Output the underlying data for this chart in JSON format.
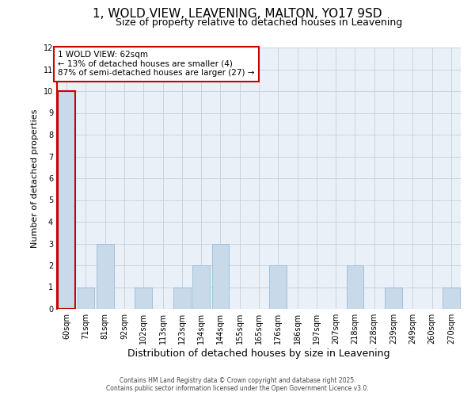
{
  "title": "1, WOLD VIEW, LEAVENING, MALTON, YO17 9SD",
  "subtitle": "Size of property relative to detached houses in Leavening",
  "xlabel": "Distribution of detached houses by size in Leavening",
  "ylabel": "Number of detached properties",
  "categories": [
    "60sqm",
    "71sqm",
    "81sqm",
    "92sqm",
    "102sqm",
    "113sqm",
    "123sqm",
    "134sqm",
    "144sqm",
    "155sqm",
    "165sqm",
    "176sqm",
    "186sqm",
    "197sqm",
    "207sqm",
    "218sqm",
    "228sqm",
    "239sqm",
    "249sqm",
    "260sqm",
    "270sqm"
  ],
  "values": [
    10,
    1,
    3,
    0,
    1,
    0,
    1,
    2,
    3,
    0,
    0,
    2,
    0,
    0,
    0,
    2,
    0,
    1,
    0,
    0,
    1
  ],
  "bar_color": "#c8d9ea",
  "highlight_edge_color": "#cc0000",
  "normal_edge_color": "#8ab4d4",
  "highlight_index": 0,
  "ylim": [
    0,
    12
  ],
  "yticks": [
    0,
    1,
    2,
    3,
    4,
    5,
    6,
    7,
    8,
    9,
    10,
    11,
    12
  ],
  "annotation_text": "1 WOLD VIEW: 62sqm\n← 13% of detached houses are smaller (4)\n87% of semi-detached houses are larger (27) →",
  "annotation_box_edge": "#cc0000",
  "footer_line1": "Contains HM Land Registry data © Crown copyright and database right 2025.",
  "footer_line2": "Contains public sector information licensed under the Open Government Licence v3.0.",
  "bg_color": "#eaf0f8",
  "grid_color": "#c5cfd8",
  "title_fontsize": 11,
  "subtitle_fontsize": 9,
  "tick_fontsize": 7,
  "ylabel_fontsize": 8,
  "xlabel_fontsize": 9,
  "footer_fontsize": 5.5,
  "ann_fontsize": 7.5
}
